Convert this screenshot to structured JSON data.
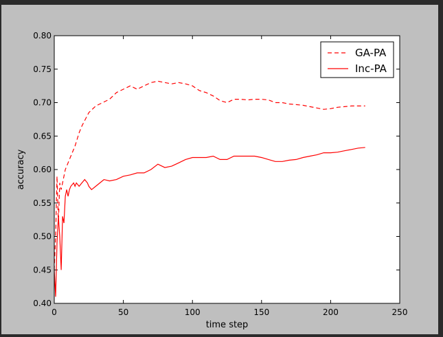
{
  "chart_data": {
    "type": "line",
    "title": "",
    "xlabel": "time step",
    "ylabel": "accuracy",
    "xlim": [
      0,
      250
    ],
    "ylim": [
      0.4,
      0.8
    ],
    "x_ticks": [
      "0",
      "50",
      "100",
      "150",
      "200",
      "250"
    ],
    "y_ticks": [
      "0.40",
      "0.45",
      "0.50",
      "0.55",
      "0.60",
      "0.65",
      "0.70",
      "0.75",
      "0.80"
    ],
    "grid": false,
    "legend_position": "top-right",
    "series": [
      {
        "name": "GA-PA",
        "color": "#ff0000",
        "style": "dashed",
        "points": [
          [
            0,
            0.45
          ],
          [
            1,
            0.5
          ],
          [
            2,
            0.59
          ],
          [
            3,
            0.52
          ],
          [
            4,
            0.58
          ],
          [
            5,
            0.57
          ],
          [
            6,
            0.58
          ],
          [
            8,
            0.6
          ],
          [
            10,
            0.61
          ],
          [
            12,
            0.62
          ],
          [
            15,
            0.635
          ],
          [
            18,
            0.655
          ],
          [
            20,
            0.665
          ],
          [
            25,
            0.685
          ],
          [
            30,
            0.695
          ],
          [
            35,
            0.7
          ],
          [
            40,
            0.705
          ],
          [
            45,
            0.715
          ],
          [
            50,
            0.72
          ],
          [
            55,
            0.725
          ],
          [
            60,
            0.72
          ],
          [
            65,
            0.725
          ],
          [
            70,
            0.73
          ],
          [
            75,
            0.732
          ],
          [
            80,
            0.73
          ],
          [
            85,
            0.728
          ],
          [
            90,
            0.73
          ],
          [
            95,
            0.728
          ],
          [
            100,
            0.725
          ],
          [
            105,
            0.718
          ],
          [
            110,
            0.715
          ],
          [
            115,
            0.71
          ],
          [
            120,
            0.703
          ],
          [
            125,
            0.7
          ],
          [
            130,
            0.705
          ],
          [
            135,
            0.705
          ],
          [
            140,
            0.704
          ],
          [
            145,
            0.705
          ],
          [
            150,
            0.705
          ],
          [
            155,
            0.704
          ],
          [
            160,
            0.7
          ],
          [
            165,
            0.7
          ],
          [
            170,
            0.698
          ],
          [
            175,
            0.697
          ],
          [
            180,
            0.696
          ],
          [
            185,
            0.694
          ],
          [
            190,
            0.692
          ],
          [
            195,
            0.69
          ],
          [
            200,
            0.691
          ],
          [
            205,
            0.693
          ],
          [
            210,
            0.694
          ],
          [
            215,
            0.695
          ],
          [
            220,
            0.695
          ],
          [
            225,
            0.695
          ]
        ]
      },
      {
        "name": "Inc-PA",
        "color": "#ff0000",
        "style": "solid",
        "points": [
          [
            0,
            0.45
          ],
          [
            1,
            0.41
          ],
          [
            2,
            0.49
          ],
          [
            3,
            0.53
          ],
          [
            4,
            0.5
          ],
          [
            5,
            0.45
          ],
          [
            6,
            0.53
          ],
          [
            7,
            0.52
          ],
          [
            8,
            0.56
          ],
          [
            9,
            0.57
          ],
          [
            10,
            0.56
          ],
          [
            11,
            0.57
          ],
          [
            12,
            0.575
          ],
          [
            14,
            0.58
          ],
          [
            15,
            0.575
          ],
          [
            16,
            0.58
          ],
          [
            18,
            0.575
          ],
          [
            20,
            0.58
          ],
          [
            22,
            0.585
          ],
          [
            24,
            0.58
          ],
          [
            25,
            0.575
          ],
          [
            27,
            0.57
          ],
          [
            30,
            0.575
          ],
          [
            33,
            0.58
          ],
          [
            36,
            0.585
          ],
          [
            40,
            0.583
          ],
          [
            45,
            0.585
          ],
          [
            50,
            0.59
          ],
          [
            55,
            0.592
          ],
          [
            60,
            0.595
          ],
          [
            65,
            0.595
          ],
          [
            70,
            0.6
          ],
          [
            75,
            0.608
          ],
          [
            80,
            0.603
          ],
          [
            85,
            0.605
          ],
          [
            90,
            0.61
          ],
          [
            95,
            0.615
          ],
          [
            100,
            0.618
          ],
          [
            105,
            0.618
          ],
          [
            110,
            0.618
          ],
          [
            115,
            0.62
          ],
          [
            120,
            0.615
          ],
          [
            125,
            0.615
          ],
          [
            130,
            0.62
          ],
          [
            135,
            0.62
          ],
          [
            140,
            0.62
          ],
          [
            145,
            0.62
          ],
          [
            150,
            0.618
          ],
          [
            155,
            0.615
          ],
          [
            160,
            0.612
          ],
          [
            165,
            0.612
          ],
          [
            170,
            0.614
          ],
          [
            175,
            0.615
          ],
          [
            180,
            0.618
          ],
          [
            185,
            0.62
          ],
          [
            190,
            0.622
          ],
          [
            195,
            0.625
          ],
          [
            200,
            0.625
          ],
          [
            205,
            0.626
          ],
          [
            210,
            0.628
          ],
          [
            215,
            0.63
          ],
          [
            220,
            0.632
          ],
          [
            225,
            0.633
          ]
        ]
      }
    ]
  }
}
